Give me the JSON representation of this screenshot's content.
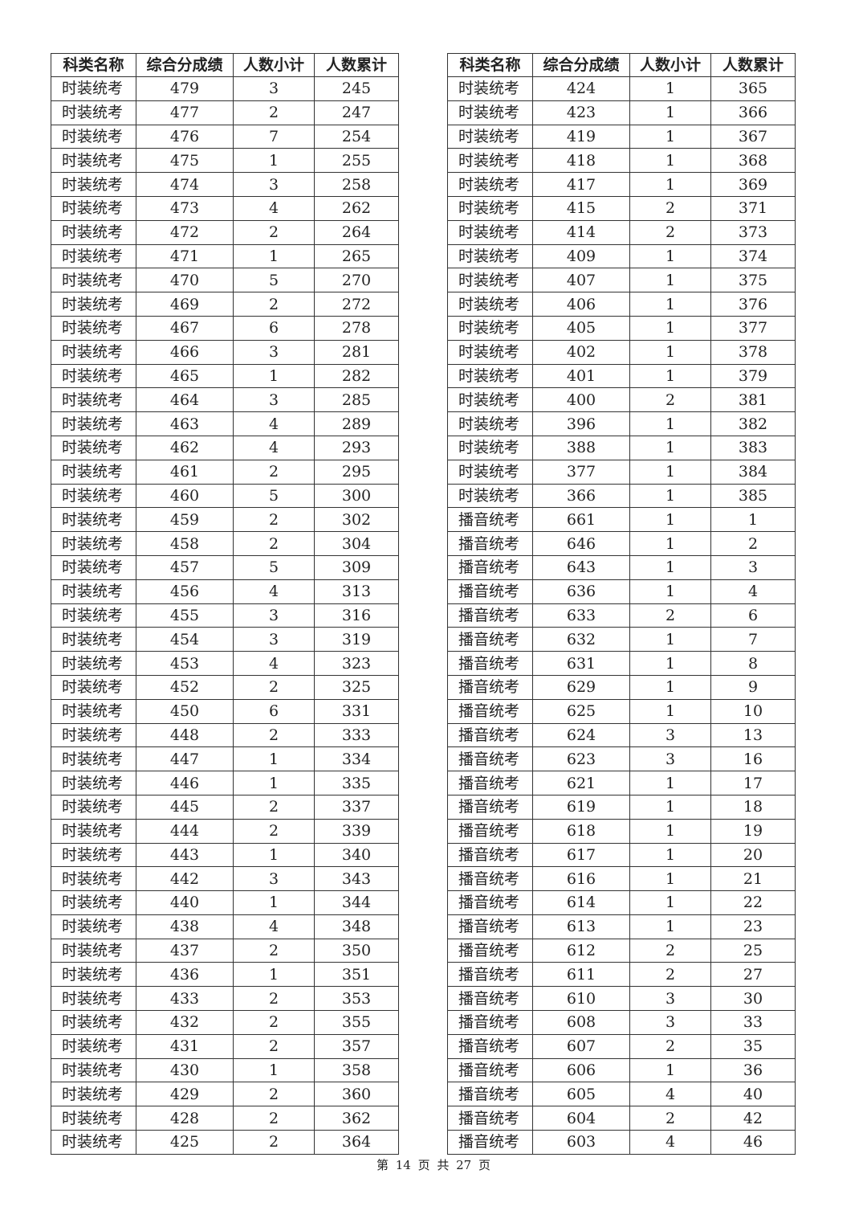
{
  "headers": [
    "科类名称",
    "综合分成绩",
    "人数小计",
    "人数累计"
  ],
  "tables": [
    {
      "rows": [
        [
          "时装统考",
          "479",
          "3",
          "245"
        ],
        [
          "时装统考",
          "477",
          "2",
          "247"
        ],
        [
          "时装统考",
          "476",
          "7",
          "254"
        ],
        [
          "时装统考",
          "475",
          "1",
          "255"
        ],
        [
          "时装统考",
          "474",
          "3",
          "258"
        ],
        [
          "时装统考",
          "473",
          "4",
          "262"
        ],
        [
          "时装统考",
          "472",
          "2",
          "264"
        ],
        [
          "时装统考",
          "471",
          "1",
          "265"
        ],
        [
          "时装统考",
          "470",
          "5",
          "270"
        ],
        [
          "时装统考",
          "469",
          "2",
          "272"
        ],
        [
          "时装统考",
          "467",
          "6",
          "278"
        ],
        [
          "时装统考",
          "466",
          "3",
          "281"
        ],
        [
          "时装统考",
          "465",
          "1",
          "282"
        ],
        [
          "时装统考",
          "464",
          "3",
          "285"
        ],
        [
          "时装统考",
          "463",
          "4",
          "289"
        ],
        [
          "时装统考",
          "462",
          "4",
          "293"
        ],
        [
          "时装统考",
          "461",
          "2",
          "295"
        ],
        [
          "时装统考",
          "460",
          "5",
          "300"
        ],
        [
          "时装统考",
          "459",
          "2",
          "302"
        ],
        [
          "时装统考",
          "458",
          "2",
          "304"
        ],
        [
          "时装统考",
          "457",
          "5",
          "309"
        ],
        [
          "时装统考",
          "456",
          "4",
          "313"
        ],
        [
          "时装统考",
          "455",
          "3",
          "316"
        ],
        [
          "时装统考",
          "454",
          "3",
          "319"
        ],
        [
          "时装统考",
          "453",
          "4",
          "323"
        ],
        [
          "时装统考",
          "452",
          "2",
          "325"
        ],
        [
          "时装统考",
          "450",
          "6",
          "331"
        ],
        [
          "时装统考",
          "448",
          "2",
          "333"
        ],
        [
          "时装统考",
          "447",
          "1",
          "334"
        ],
        [
          "时装统考",
          "446",
          "1",
          "335"
        ],
        [
          "时装统考",
          "445",
          "2",
          "337"
        ],
        [
          "时装统考",
          "444",
          "2",
          "339"
        ],
        [
          "时装统考",
          "443",
          "1",
          "340"
        ],
        [
          "时装统考",
          "442",
          "3",
          "343"
        ],
        [
          "时装统考",
          "440",
          "1",
          "344"
        ],
        [
          "时装统考",
          "438",
          "4",
          "348"
        ],
        [
          "时装统考",
          "437",
          "2",
          "350"
        ],
        [
          "时装统考",
          "436",
          "1",
          "351"
        ],
        [
          "时装统考",
          "433",
          "2",
          "353"
        ],
        [
          "时装统考",
          "432",
          "2",
          "355"
        ],
        [
          "时装统考",
          "431",
          "2",
          "357"
        ],
        [
          "时装统考",
          "430",
          "1",
          "358"
        ],
        [
          "时装统考",
          "429",
          "2",
          "360"
        ],
        [
          "时装统考",
          "428",
          "2",
          "362"
        ],
        [
          "时装统考",
          "425",
          "2",
          "364"
        ]
      ]
    },
    {
      "rows": [
        [
          "时装统考",
          "424",
          "1",
          "365"
        ],
        [
          "时装统考",
          "423",
          "1",
          "366"
        ],
        [
          "时装统考",
          "419",
          "1",
          "367"
        ],
        [
          "时装统考",
          "418",
          "1",
          "368"
        ],
        [
          "时装统考",
          "417",
          "1",
          "369"
        ],
        [
          "时装统考",
          "415",
          "2",
          "371"
        ],
        [
          "时装统考",
          "414",
          "2",
          "373"
        ],
        [
          "时装统考",
          "409",
          "1",
          "374"
        ],
        [
          "时装统考",
          "407",
          "1",
          "375"
        ],
        [
          "时装统考",
          "406",
          "1",
          "376"
        ],
        [
          "时装统考",
          "405",
          "1",
          "377"
        ],
        [
          "时装统考",
          "402",
          "1",
          "378"
        ],
        [
          "时装统考",
          "401",
          "1",
          "379"
        ],
        [
          "时装统考",
          "400",
          "2",
          "381"
        ],
        [
          "时装统考",
          "396",
          "1",
          "382"
        ],
        [
          "时装统考",
          "388",
          "1",
          "383"
        ],
        [
          "时装统考",
          "377",
          "1",
          "384"
        ],
        [
          "时装统考",
          "366",
          "1",
          "385"
        ],
        [
          "播音统考",
          "661",
          "1",
          "1"
        ],
        [
          "播音统考",
          "646",
          "1",
          "2"
        ],
        [
          "播音统考",
          "643",
          "1",
          "3"
        ],
        [
          "播音统考",
          "636",
          "1",
          "4"
        ],
        [
          "播音统考",
          "633",
          "2",
          "6"
        ],
        [
          "播音统考",
          "632",
          "1",
          "7"
        ],
        [
          "播音统考",
          "631",
          "1",
          "8"
        ],
        [
          "播音统考",
          "629",
          "1",
          "9"
        ],
        [
          "播音统考",
          "625",
          "1",
          "10"
        ],
        [
          "播音统考",
          "624",
          "3",
          "13"
        ],
        [
          "播音统考",
          "623",
          "3",
          "16"
        ],
        [
          "播音统考",
          "621",
          "1",
          "17"
        ],
        [
          "播音统考",
          "619",
          "1",
          "18"
        ],
        [
          "播音统考",
          "618",
          "1",
          "19"
        ],
        [
          "播音统考",
          "617",
          "1",
          "20"
        ],
        [
          "播音统考",
          "616",
          "1",
          "21"
        ],
        [
          "播音统考",
          "614",
          "1",
          "22"
        ],
        [
          "播音统考",
          "613",
          "1",
          "23"
        ],
        [
          "播音统考",
          "612",
          "2",
          "25"
        ],
        [
          "播音统考",
          "611",
          "2",
          "27"
        ],
        [
          "播音统考",
          "610",
          "3",
          "30"
        ],
        [
          "播音统考",
          "608",
          "3",
          "33"
        ],
        [
          "播音统考",
          "607",
          "2",
          "35"
        ],
        [
          "播音统考",
          "606",
          "1",
          "36"
        ],
        [
          "播音统考",
          "605",
          "4",
          "40"
        ],
        [
          "播音统考",
          "604",
          "2",
          "42"
        ],
        [
          "播音统考",
          "603",
          "4",
          "46"
        ]
      ]
    }
  ],
  "footer": {
    "text": "第 14 页 共 27 页"
  }
}
